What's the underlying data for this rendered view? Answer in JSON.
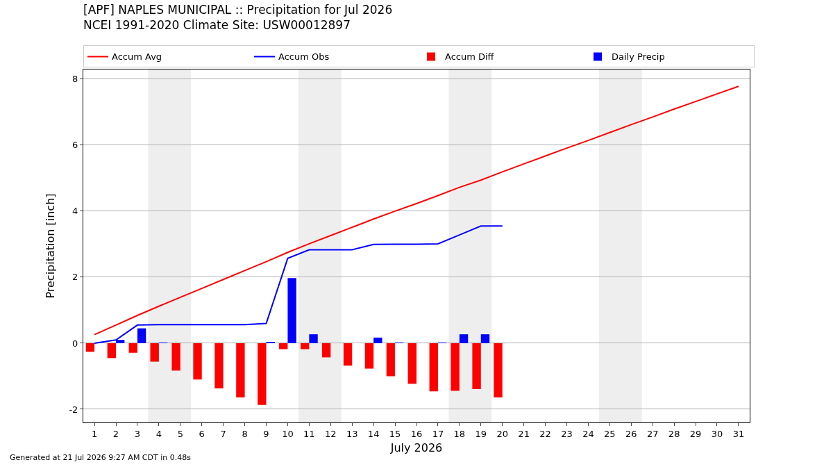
{
  "chart_data": {
    "type": "bar",
    "title": "[APF] NAPLES MUNICIPAL :: Precipitation for Jul 2026",
    "subtitle": "NCEI 1991-2020 Climate Site: USW00012897",
    "xlabel": "July 2026",
    "ylabel": "Precipitation [inch]",
    "x": [
      1,
      2,
      3,
      4,
      5,
      6,
      7,
      8,
      9,
      10,
      11,
      12,
      13,
      14,
      15,
      16,
      17,
      18,
      19,
      20,
      21,
      22,
      23,
      24,
      25,
      26,
      27,
      28,
      29,
      30,
      31
    ],
    "series": [
      {
        "name": "Accum Avg",
        "type": "line",
        "color": "#ff0000",
        "values": [
          0.26,
          0.55,
          0.84,
          1.12,
          1.39,
          1.66,
          1.93,
          2.2,
          2.47,
          2.75,
          3.01,
          3.26,
          3.51,
          3.76,
          4.0,
          4.23,
          4.47,
          4.72,
          4.94,
          5.19,
          5.43,
          5.67,
          5.91,
          6.14,
          6.38,
          6.62,
          6.85,
          7.09,
          7.32,
          7.55,
          7.78
        ]
      },
      {
        "name": "Accum Obs",
        "type": "line",
        "color": "#0000ff",
        "values": [
          0,
          0.1,
          0.55,
          0.56,
          0.56,
          0.56,
          0.56,
          0.56,
          0.6,
          2.57,
          2.83,
          2.83,
          2.83,
          2.99,
          3.0,
          3.0,
          3.01,
          3.28,
          3.55,
          3.55,
          null,
          null,
          null,
          null,
          null,
          null,
          null,
          null,
          null,
          null,
          null
        ]
      },
      {
        "name": "Accum Diff",
        "type": "bar",
        "color": "#ff0000",
        "values": [
          -0.26,
          -0.45,
          -0.29,
          -0.56,
          -0.83,
          -1.1,
          -1.37,
          -1.64,
          -1.87,
          -0.18,
          -0.18,
          -0.43,
          -0.68,
          -0.77,
          -1.0,
          -1.23,
          -1.46,
          -1.44,
          -1.39,
          -1.64,
          null,
          null,
          null,
          null,
          null,
          null,
          null,
          null,
          null,
          null,
          null
        ]
      },
      {
        "name": "Daily Precip",
        "type": "bar",
        "color": "#0000ff",
        "values": [
          0,
          0.1,
          0.45,
          0.01,
          0,
          0,
          0,
          0,
          0.04,
          1.97,
          0.27,
          0,
          0,
          0.17,
          0.01,
          0,
          0.01,
          0.27,
          0.27,
          0,
          null,
          null,
          null,
          null,
          null,
          null,
          null,
          null,
          null,
          null,
          null
        ]
      }
    ],
    "bands": [
      {
        "axis": "x",
        "from": 3.5,
        "to": 5.5,
        "color": "#eeeeee"
      },
      {
        "axis": "x",
        "from": 10.5,
        "to": 12.5,
        "color": "#eeeeee"
      },
      {
        "axis": "x",
        "from": 17.5,
        "to": 19.5,
        "color": "#eeeeee"
      },
      {
        "axis": "x",
        "from": 24.5,
        "to": 26.5,
        "color": "#eeeeee"
      }
    ],
    "xlim": [
      0.48,
      31.52
    ],
    "xticks": [
      1,
      2,
      3,
      4,
      5,
      6,
      7,
      8,
      9,
      10,
      11,
      12,
      13,
      14,
      15,
      16,
      17,
      18,
      19,
      20,
      21,
      22,
      23,
      24,
      25,
      26,
      27,
      28,
      29,
      30,
      31
    ],
    "ylim": [
      -2.4,
      8.29
    ],
    "yticks": [
      -2,
      0,
      2,
      4,
      6,
      8
    ],
    "grid": "y",
    "legend": "top",
    "marker": "none",
    "line_style": "solid",
    "annotations": [
      "Generated at 21 Jul 2026 9:27 AM CDT in 0.48s"
    ]
  }
}
